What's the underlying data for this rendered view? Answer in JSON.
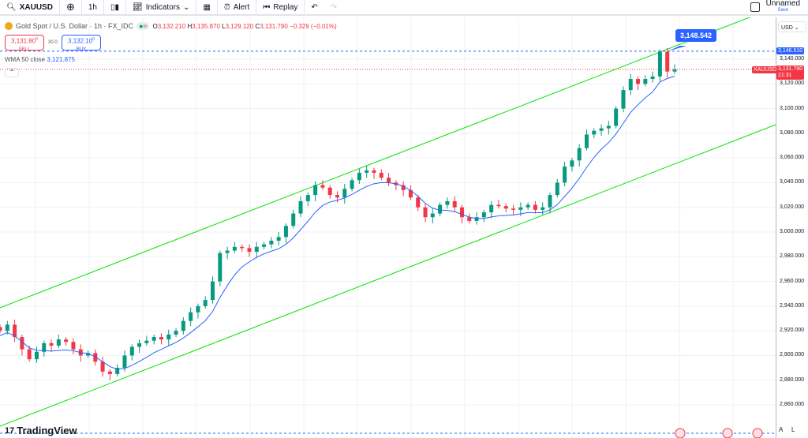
{
  "toolbar": {
    "symbol": "XAUUSD",
    "interval": "1h",
    "indicators": "Indicators",
    "alert": "Alert",
    "replay": "Replay",
    "layout_name": "Unnamed",
    "save": "Save"
  },
  "legend": {
    "title": "Gold Spot / U.S. Dollar · 1h · FX_IDC",
    "o_label": "O",
    "o": "3,132.210",
    "h_label": "H",
    "h": "3,135.870",
    "l_label": "L",
    "l": "3,129.120",
    "c_label": "C",
    "c": "3,131.790",
    "change": "−0.329 (−0.01%)",
    "sell_price": "3,131.80",
    "sell_sup": "0",
    "sell_label": "SELL",
    "spread": "30.0",
    "buy_price": "3,132.10",
    "buy_sup": "0",
    "buy_label": "BUY",
    "wma_label": "WMA 50 close",
    "wma_value": "3,121.875"
  },
  "price_axis": {
    "currency": "USD",
    "labels": [
      "3,140.000",
      "3,120.000",
      "3,100.000",
      "3,080.000",
      "3,060.000",
      "3,040.000",
      "3,020.000",
      "3,000.000",
      "2,980.000",
      "2,960.000",
      "2,940.000",
      "2,920.000",
      "2,900.000",
      "2,880.000",
      "2,860.000"
    ],
    "high_marker": "3,146.510",
    "last_symbol": "XAUUSD",
    "last_price": "3,131.790",
    "countdown": "21:31",
    "btn_a": "A",
    "btn_l": "L"
  },
  "callout": "3,148.542",
  "brand": "TradingView",
  "colors": {
    "up": "#089981",
    "down": "#f23645",
    "wma": "#2962ff",
    "channel": "#00e600"
  },
  "chart_data": {
    "type": "candlestick",
    "closes": [
      2920,
      2925,
      2915,
      2905,
      2897,
      2903,
      2910,
      2908,
      2913,
      2911,
      2905,
      2900,
      2902,
      2895,
      2887,
      2885,
      2890,
      2900,
      2907,
      2910,
      2912,
      2915,
      2913,
      2917,
      2920,
      2928,
      2935,
      2940,
      2945,
      2960,
      2983,
      2985,
      2988,
      2987,
      2984,
      2988,
      2990,
      2993,
      2996,
      3005,
      3015,
      3025,
      3030,
      3038,
      3036,
      3030,
      3028,
      3035,
      3042,
      3048,
      3050,
      3048,
      3044,
      3040,
      3038,
      3034,
      3028,
      3020,
      3012,
      3015,
      3022,
      3025,
      3020,
      3012,
      3009,
      3012,
      3016,
      3022,
      3021,
      3019,
      3018,
      3020,
      3022,
      3018,
      3020,
      3030,
      3040,
      3053,
      3058,
      3068,
      3079,
      3082,
      3084,
      3086,
      3100,
      3115,
      3124,
      3120,
      3124,
      3126,
      3146,
      3130,
      3131.79
    ],
    "ylim": [
      2850,
      3160
    ]
  }
}
